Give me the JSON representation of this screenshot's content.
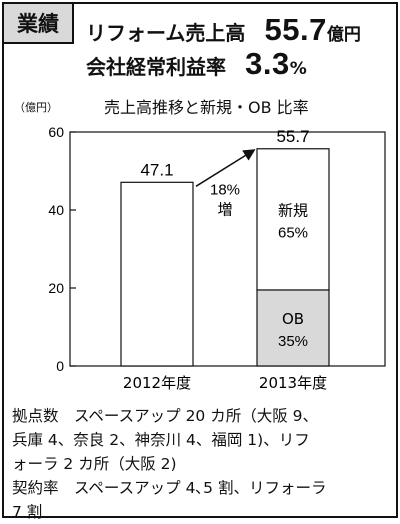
{
  "header": {
    "tag": "業績",
    "line1": {
      "label": "リフォーム売上高",
      "value": "55.7",
      "unit": "億円"
    },
    "line2": {
      "label": "会社経常利益率",
      "value": "3.3",
      "unit": "%"
    }
  },
  "chart_data": {
    "type": "bar",
    "title": "売上高推移と新規・OB 比率",
    "ylabel": "（億円）",
    "ylim": [
      0,
      60
    ],
    "yticks": [
      0,
      20,
      40,
      60
    ],
    "categories": [
      "2012年度",
      "2013年度"
    ],
    "bars": [
      {
        "category": "2012年度",
        "total": 47.1,
        "total_label": "47.1",
        "segments": []
      },
      {
        "category": "2013年度",
        "total": 55.7,
        "total_label": "55.7",
        "segments": [
          {
            "name": "OB",
            "percent": "35%",
            "value": 19.5
          },
          {
            "name": "新規",
            "percent": "65%",
            "value": 36.2
          }
        ]
      }
    ],
    "annotation": {
      "line1": "18%",
      "line2": "増"
    },
    "colors": {
      "ob": "#d9d9d9",
      "new": "#ffffff",
      "bar": "#ffffff",
      "stroke": "#111111"
    }
  },
  "notes": [
    "拠点数　スペースアップ 20 カ所（大阪 9、",
    "兵庫 4、奈良 2、神奈川 4、福岡 1)、リフ",
    "ォーラ 2 カ所（大阪 2)",
    "契約率　スペースアップ 4､5 割、リフォーラ",
    "7 割"
  ]
}
